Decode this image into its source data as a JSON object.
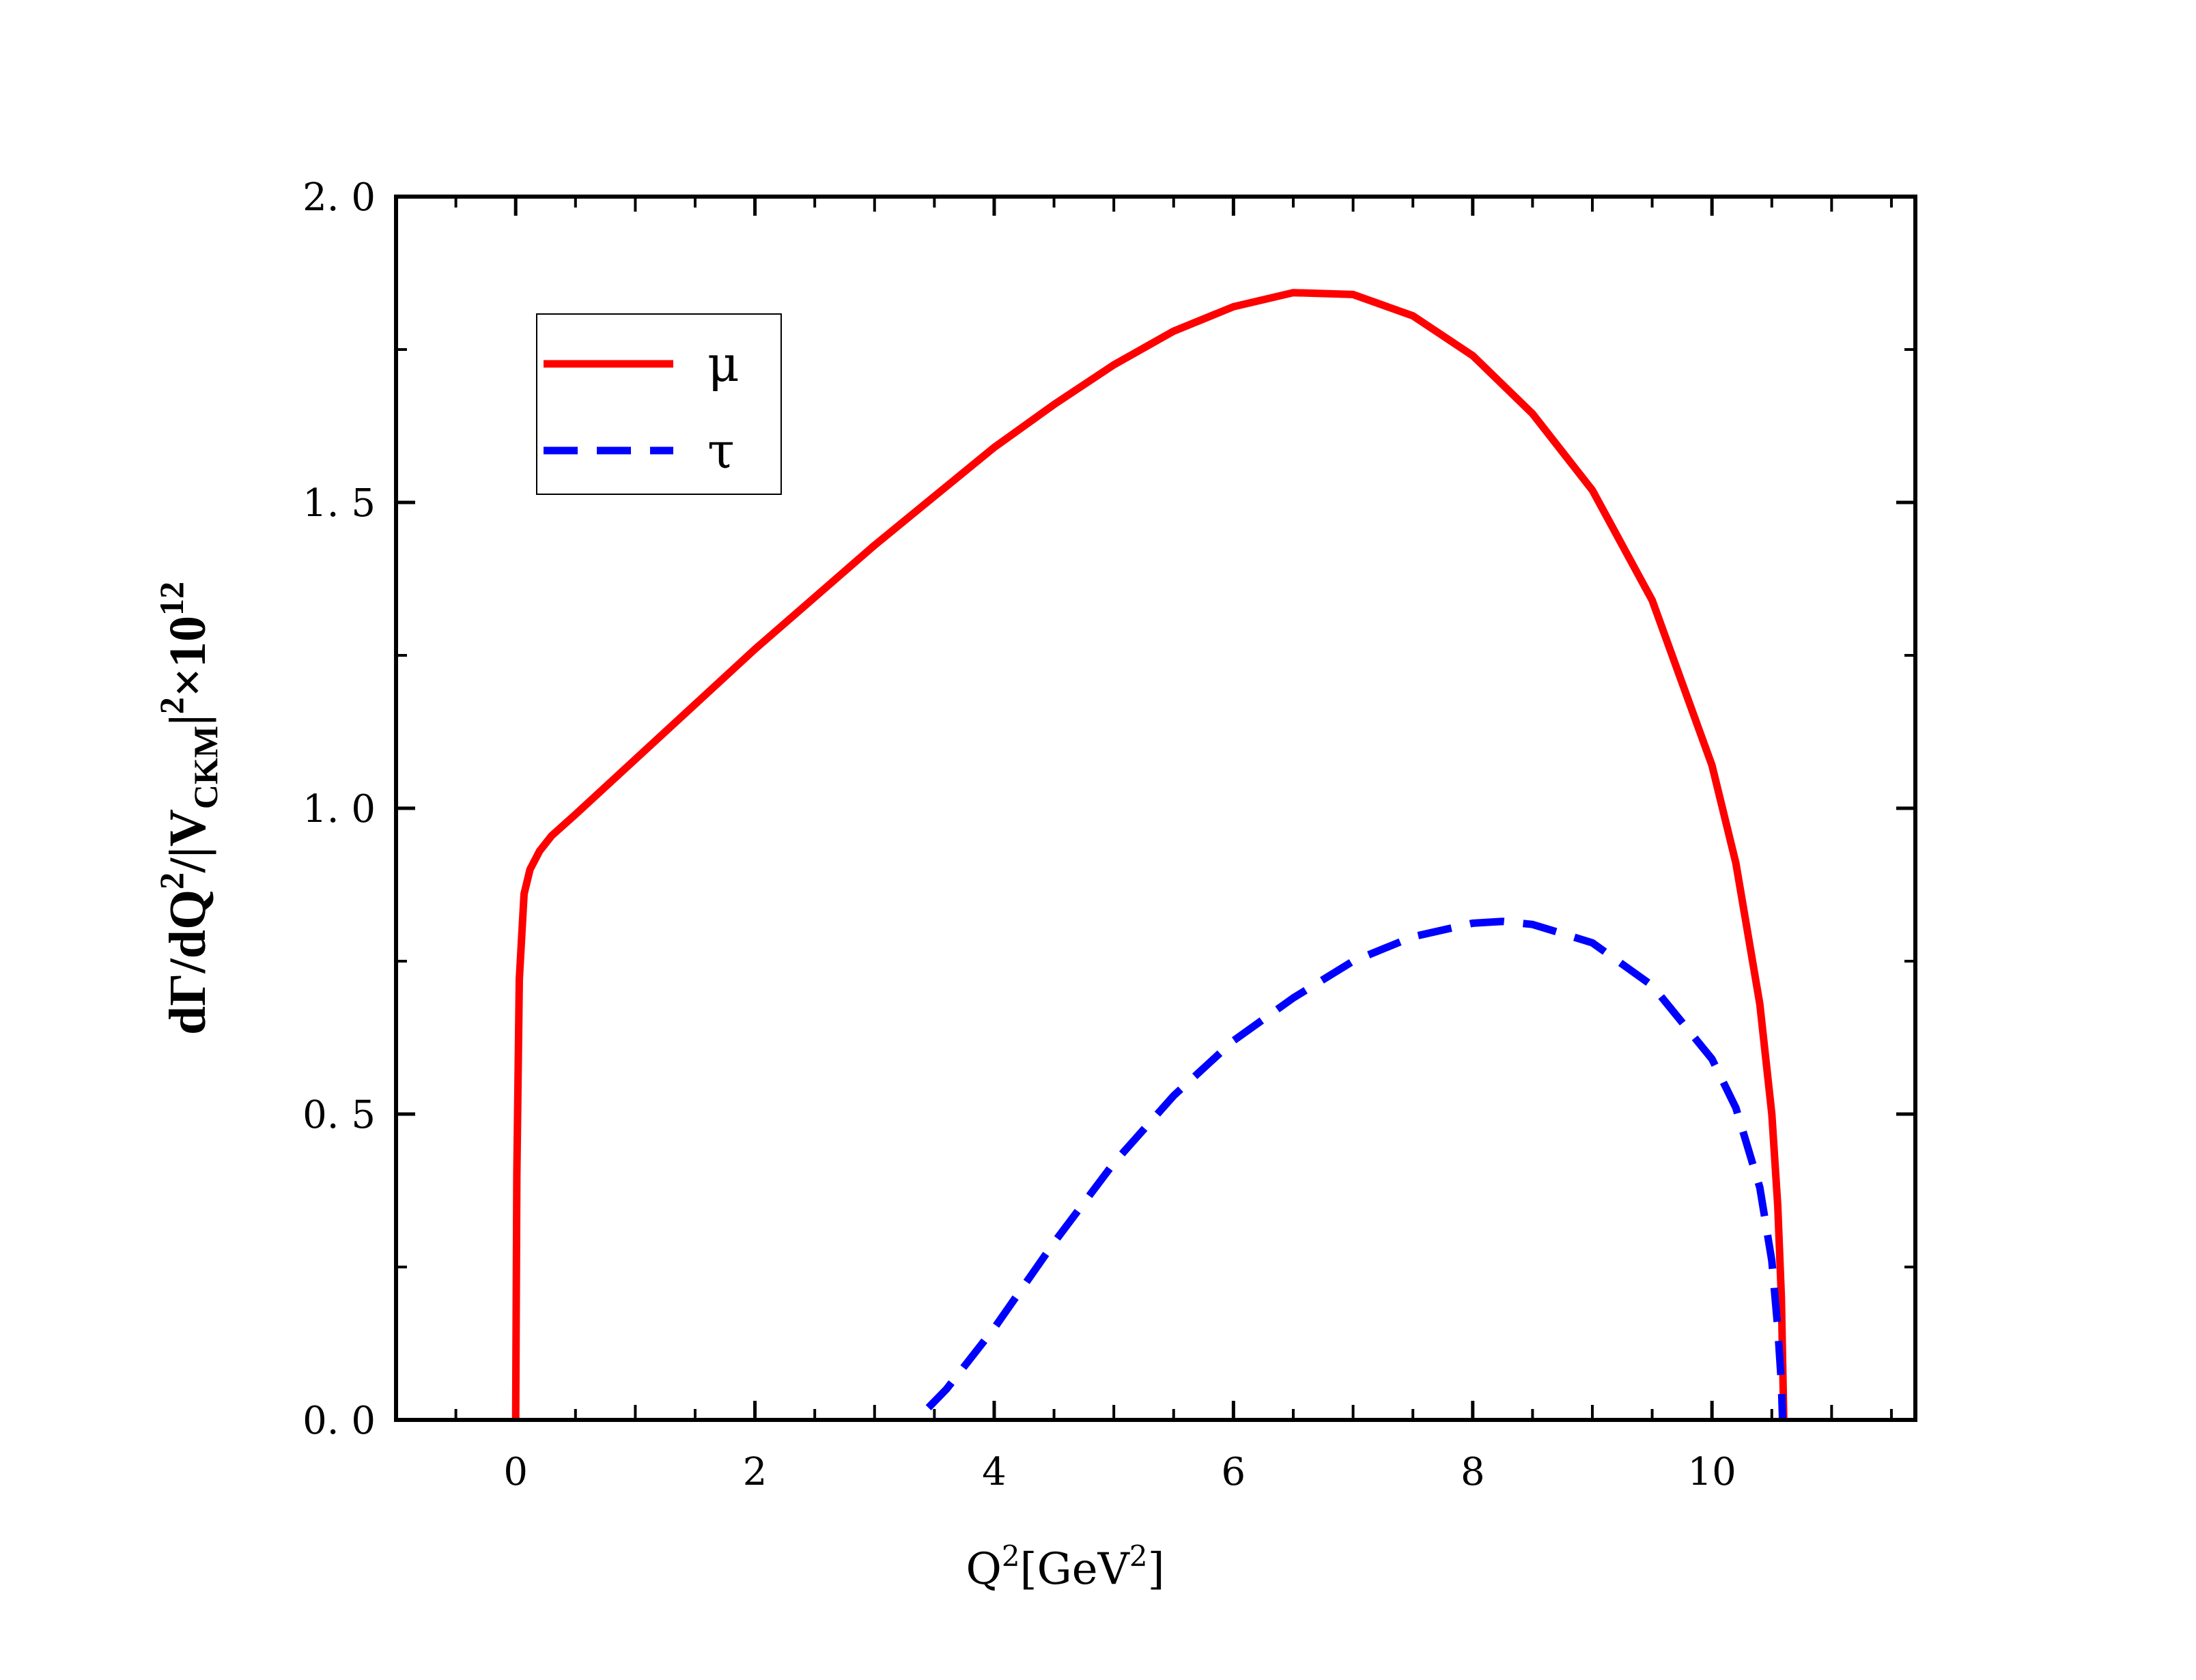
{
  "chart_data": {
    "type": "line",
    "xlabel": {
      "base": "Q",
      "sup": "2",
      "bracket_open": "[",
      "unit": "GeV",
      "unit_sup": "2",
      "bracket_close": "]"
    },
    "ylabel": {
      "p1": "dΓ/dQ",
      "s1": "2",
      "p2": "/|V",
      "sub": "CKM",
      "p3": "|",
      "s2": "2",
      "p4": "×10",
      "s3": "12"
    },
    "xlim": [
      -1,
      11.7
    ],
    "ylim": [
      0,
      2.0
    ],
    "xticks": [
      0,
      2,
      4,
      6,
      8,
      10
    ],
    "xtick_labels": [
      "0",
      "2",
      "4",
      "6",
      "8",
      "10"
    ],
    "yticks": [
      0,
      0.5,
      1.0,
      1.5,
      2.0
    ],
    "ytick_labels": [
      "0. 0",
      "0. 5",
      "1. 0",
      "1. 5",
      "2. 0"
    ],
    "legend_position": "top-left",
    "grid": false,
    "series": [
      {
        "name": "μ",
        "color": "#ff0000",
        "style": "solid",
        "points": [
          [
            0.0,
            0.0
          ],
          [
            0.01,
            0.4
          ],
          [
            0.03,
            0.72
          ],
          [
            0.07,
            0.86
          ],
          [
            0.12,
            0.9
          ],
          [
            0.2,
            0.93
          ],
          [
            0.3,
            0.955
          ],
          [
            0.5,
            0.99
          ],
          [
            1.0,
            1.08
          ],
          [
            1.5,
            1.17
          ],
          [
            2.0,
            1.26
          ],
          [
            2.5,
            1.345
          ],
          [
            3.0,
            1.43
          ],
          [
            3.5,
            1.51
          ],
          [
            4.0,
            1.59
          ],
          [
            4.5,
            1.66
          ],
          [
            5.0,
            1.725
          ],
          [
            5.5,
            1.78
          ],
          [
            6.0,
            1.82
          ],
          [
            6.5,
            1.843
          ],
          [
            7.0,
            1.84
          ],
          [
            7.5,
            1.805
          ],
          [
            8.0,
            1.74
          ],
          [
            8.5,
            1.645
          ],
          [
            9.0,
            1.52
          ],
          [
            9.5,
            1.34
          ],
          [
            10.0,
            1.07
          ],
          [
            10.2,
            0.91
          ],
          [
            10.4,
            0.68
          ],
          [
            10.5,
            0.5
          ],
          [
            10.55,
            0.35
          ],
          [
            10.58,
            0.2
          ],
          [
            10.6,
            0.0
          ]
        ]
      },
      {
        "name": "τ",
        "color": "#0000ff",
        "style": "dashed",
        "points": [
          [
            3.45,
            0.02
          ],
          [
            3.6,
            0.05
          ],
          [
            4.0,
            0.15
          ],
          [
            4.5,
            0.29
          ],
          [
            5.0,
            0.42
          ],
          [
            5.5,
            0.53
          ],
          [
            6.0,
            0.62
          ],
          [
            6.5,
            0.69
          ],
          [
            7.0,
            0.75
          ],
          [
            7.5,
            0.79
          ],
          [
            8.0,
            0.812
          ],
          [
            8.25,
            0.815
          ],
          [
            8.5,
            0.81
          ],
          [
            9.0,
            0.78
          ],
          [
            9.5,
            0.71
          ],
          [
            10.0,
            0.59
          ],
          [
            10.2,
            0.51
          ],
          [
            10.4,
            0.38
          ],
          [
            10.5,
            0.26
          ],
          [
            10.55,
            0.15
          ],
          [
            10.58,
            0.06
          ],
          [
            10.59,
            0.0
          ]
        ]
      }
    ]
  }
}
